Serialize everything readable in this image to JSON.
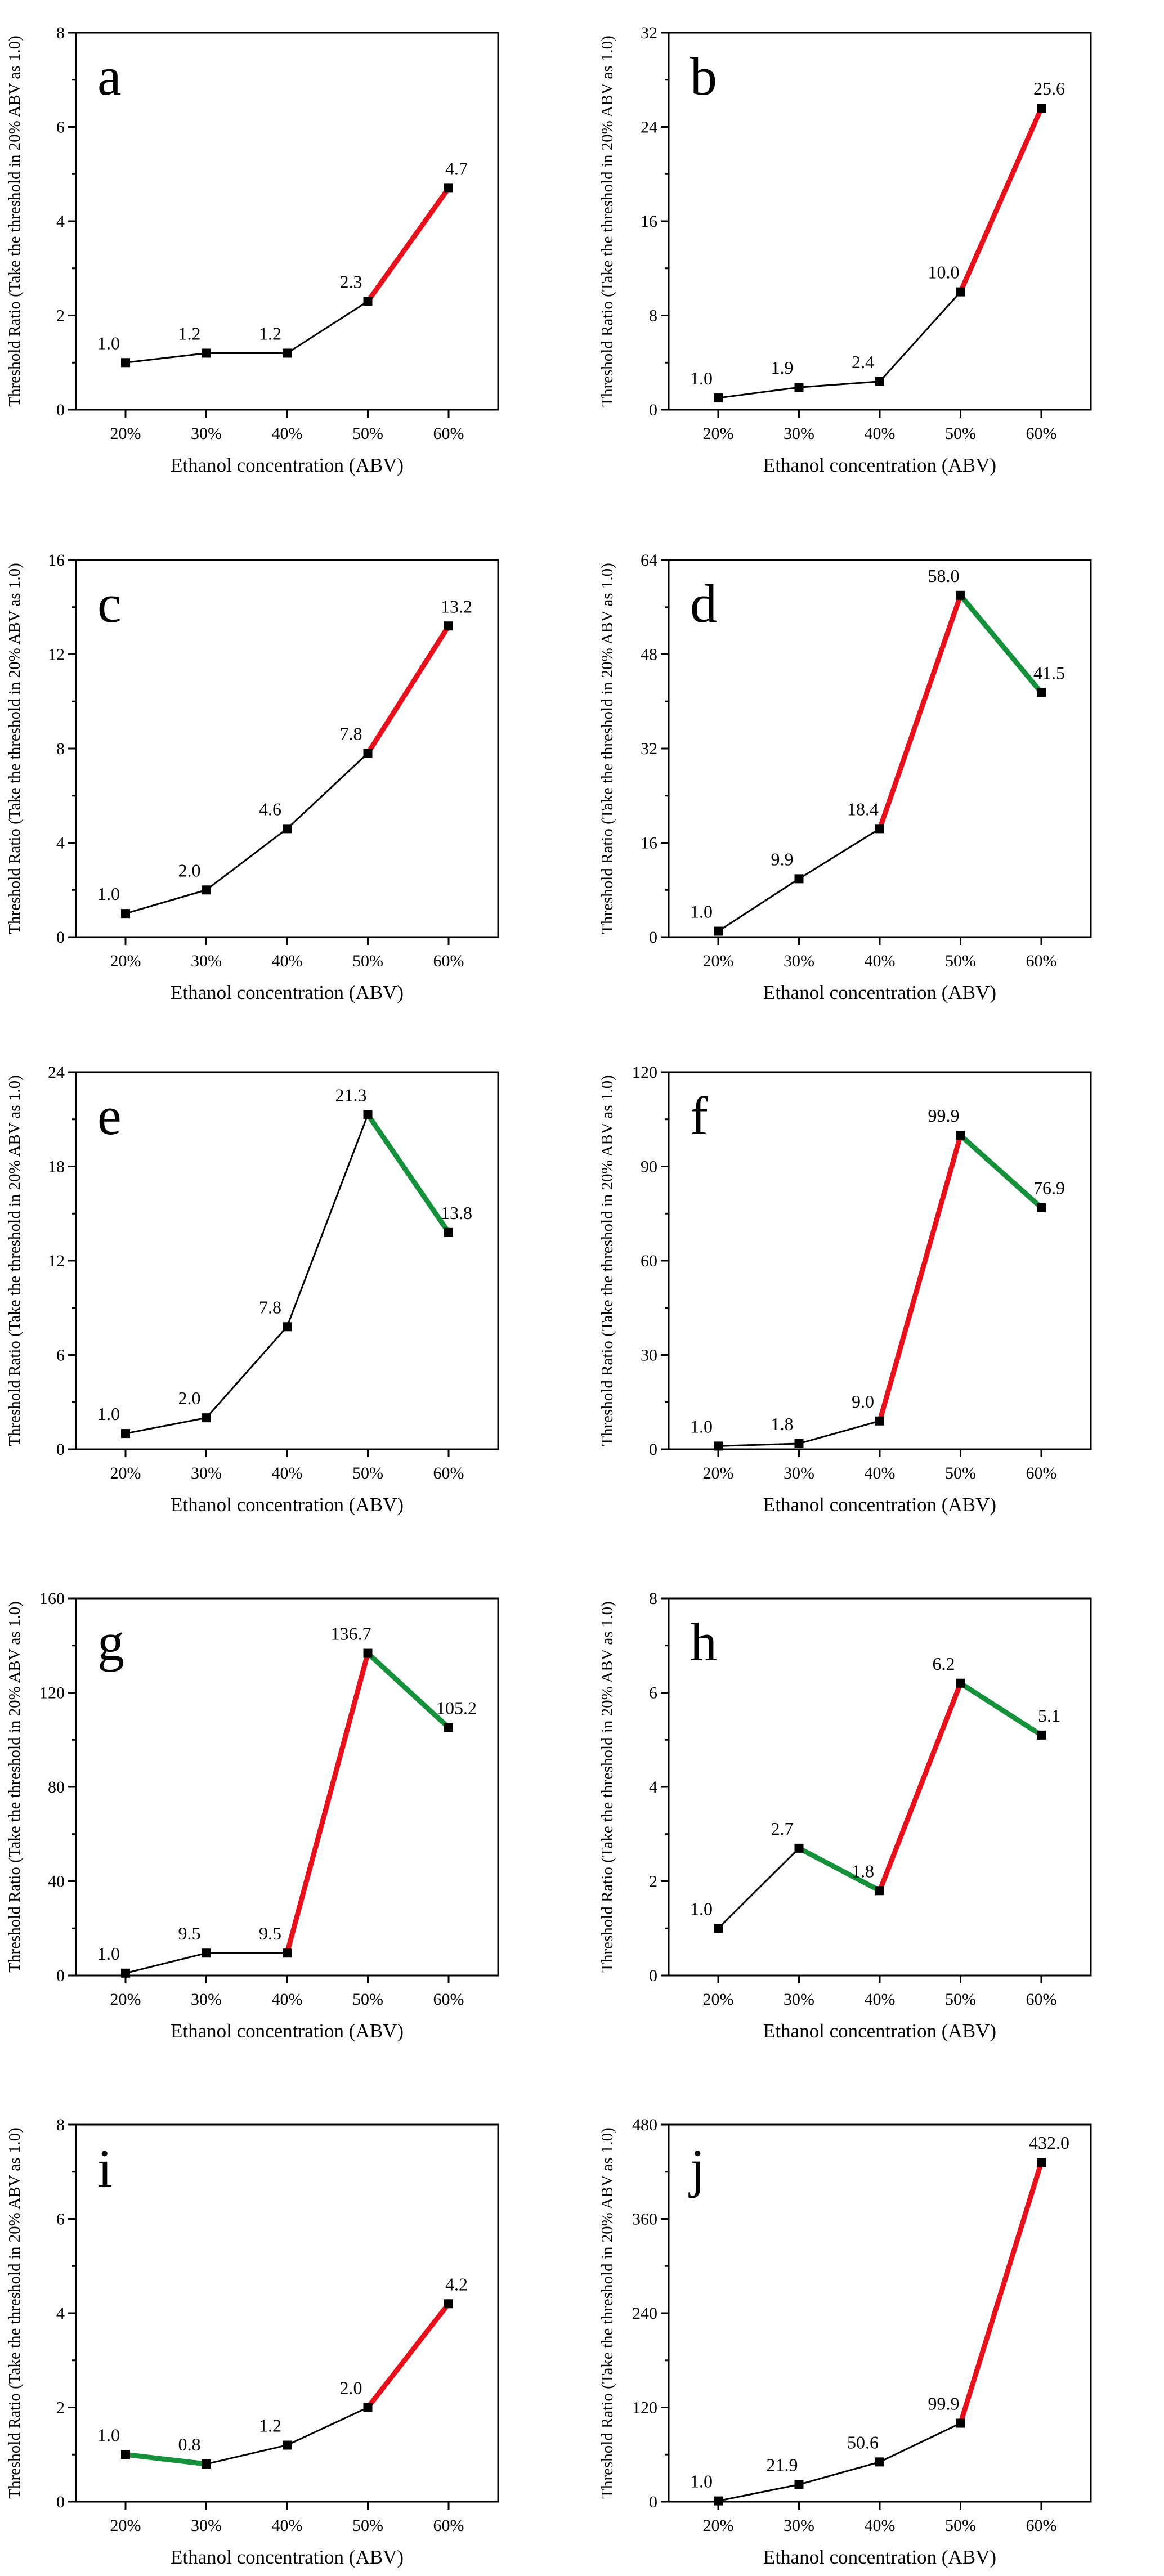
{
  "colors": {
    "rise": "#e8101a",
    "fall": "#14913a",
    "base": "#000000"
  },
  "chart_data": [
    {
      "type": "line",
      "label": "a",
      "x": [
        "20%",
        "30%",
        "40%",
        "50%",
        "60%"
      ],
      "values": [
        1.0,
        1.2,
        1.2,
        2.3,
        4.7
      ],
      "value_labels": [
        "1.0",
        "1.2",
        "1.2",
        "2.3",
        "4.7"
      ],
      "segment_colors": [
        "base",
        "base",
        "base",
        "rise"
      ],
      "ylim": [
        0,
        8
      ],
      "yticks": [
        "0",
        "2",
        "4",
        "6",
        "8"
      ],
      "xlabel": "Ethanol concentration (ABV)",
      "ylabel": "Threshold Ratio (Take the threshold in 20% ABV as 1.0)"
    },
    {
      "type": "line",
      "label": "b",
      "x": [
        "20%",
        "30%",
        "40%",
        "50%",
        "60%"
      ],
      "values": [
        1.0,
        1.9,
        2.4,
        10.0,
        25.6
      ],
      "value_labels": [
        "1.0",
        "1.9",
        "2.4",
        "10.0",
        "25.6"
      ],
      "segment_colors": [
        "base",
        "base",
        "base",
        "rise"
      ],
      "ylim": [
        0,
        32
      ],
      "yticks": [
        "0",
        "8",
        "16",
        "24",
        "32"
      ],
      "xlabel": "Ethanol concentration (ABV)",
      "ylabel": "Threshold Ratio (Take the threshold in 20% ABV as 1.0)"
    },
    {
      "type": "line",
      "label": "c",
      "x": [
        "20%",
        "30%",
        "40%",
        "50%",
        "60%"
      ],
      "values": [
        1.0,
        2.0,
        4.6,
        7.8,
        13.2
      ],
      "value_labels": [
        "1.0",
        "2.0",
        "4.6",
        "7.8",
        "13.2"
      ],
      "segment_colors": [
        "base",
        "base",
        "base",
        "rise"
      ],
      "ylim": [
        0,
        16
      ],
      "yticks": [
        "0",
        "4",
        "8",
        "12",
        "16"
      ],
      "xlabel": "Ethanol concentration (ABV)",
      "ylabel": "Threshold Ratio (Take the threshold in 20% ABV as 1.0)"
    },
    {
      "type": "line",
      "label": "d",
      "x": [
        "20%",
        "30%",
        "40%",
        "50%",
        "60%"
      ],
      "values": [
        1.0,
        9.9,
        18.4,
        58.0,
        41.5
      ],
      "value_labels": [
        "1.0",
        "9.9",
        "18.4",
        "58.0",
        "41.5"
      ],
      "segment_colors": [
        "base",
        "base",
        "rise",
        "fall"
      ],
      "ylim": [
        0,
        64
      ],
      "yticks": [
        "0",
        "16",
        "32",
        "48",
        "64"
      ],
      "xlabel": "Ethanol concentration (ABV)",
      "ylabel": "Threshold Ratio (Take the threshold in 20% ABV as 1.0)"
    },
    {
      "type": "line",
      "label": "e",
      "x": [
        "20%",
        "30%",
        "40%",
        "50%",
        "60%"
      ],
      "values": [
        1.0,
        2.0,
        7.8,
        21.3,
        13.8
      ],
      "value_labels": [
        "1.0",
        "2.0",
        "7.8",
        "21.3",
        "13.8"
      ],
      "segment_colors": [
        "base",
        "base",
        "base",
        "fall"
      ],
      "ylim": [
        0,
        24
      ],
      "yticks": [
        "0",
        "6",
        "12",
        "18",
        "24"
      ],
      "xlabel": "Ethanol concentration (ABV)",
      "ylabel": "Threshold Ratio (Take the threshold in 20% ABV as 1.0)"
    },
    {
      "type": "line",
      "label": "f",
      "x": [
        "20%",
        "30%",
        "40%",
        "50%",
        "60%"
      ],
      "values": [
        1.0,
        1.8,
        9.0,
        99.9,
        76.9
      ],
      "value_labels": [
        "1.0",
        "1.8",
        "9.0",
        "99.9",
        "76.9"
      ],
      "segment_colors": [
        "base",
        "base",
        "rise",
        "fall"
      ],
      "ylim": [
        0,
        120
      ],
      "yticks": [
        "0",
        "30",
        "60",
        "90",
        "120"
      ],
      "xlabel": "Ethanol concentration (ABV)",
      "ylabel": "Threshold Ratio (Take the threshold in 20% ABV as 1.0)"
    },
    {
      "type": "line",
      "label": "g",
      "x": [
        "20%",
        "30%",
        "40%",
        "50%",
        "60%"
      ],
      "values": [
        1.0,
        9.5,
        9.5,
        136.7,
        105.2
      ],
      "value_labels": [
        "1.0",
        "9.5",
        "9.5",
        "136.7",
        "105.2"
      ],
      "segment_colors": [
        "base",
        "base",
        "rise",
        "fall"
      ],
      "ylim": [
        0,
        160
      ],
      "yticks": [
        "0",
        "40",
        "80",
        "120",
        "160"
      ],
      "xlabel": "Ethanol concentration (ABV)",
      "ylabel": "Threshold Ratio (Take the threshold in 20% ABV as 1.0)"
    },
    {
      "type": "line",
      "label": "h",
      "x": [
        "20%",
        "30%",
        "40%",
        "50%",
        "60%"
      ],
      "values": [
        1.0,
        2.7,
        1.8,
        6.2,
        5.1
      ],
      "value_labels": [
        "1.0",
        "2.7",
        "1.8",
        "6.2",
        "5.1"
      ],
      "segment_colors": [
        "base",
        "fall",
        "rise",
        "fall"
      ],
      "ylim": [
        0,
        8
      ],
      "yticks": [
        "0",
        "2",
        "4",
        "6",
        "8"
      ],
      "xlabel": "Ethanol concentration (ABV)",
      "ylabel": "Threshold Ratio (Take the threshold in 20% ABV as 1.0)"
    },
    {
      "type": "line",
      "label": "i",
      "x": [
        "20%",
        "30%",
        "40%",
        "50%",
        "60%"
      ],
      "values": [
        1.0,
        0.8,
        1.2,
        2.0,
        4.2
      ],
      "value_labels": [
        "1.0",
        "0.8",
        "1.2",
        "2.0",
        "4.2"
      ],
      "segment_colors": [
        "fall",
        "base",
        "base",
        "rise"
      ],
      "ylim": [
        0,
        8
      ],
      "yticks": [
        "0",
        "2",
        "4",
        "6",
        "8"
      ],
      "xlabel": "Ethanol concentration (ABV)",
      "ylabel": "Threshold Ratio (Take the threshold in 20% ABV as 1.0)"
    },
    {
      "type": "line",
      "label": "j",
      "x": [
        "20%",
        "30%",
        "40%",
        "50%",
        "60%"
      ],
      "values": [
        1.0,
        21.9,
        50.6,
        99.9,
        432.0
      ],
      "value_labels": [
        "1.0",
        "21.9",
        "50.6",
        "99.9",
        "432.0"
      ],
      "segment_colors": [
        "base",
        "base",
        "base",
        "rise"
      ],
      "ylim": [
        0,
        480
      ],
      "yticks": [
        "0",
        "120",
        "240",
        "360",
        "480"
      ],
      "xlabel": "Ethanol concentration (ABV)",
      "ylabel": "Threshold Ratio (Take the threshold in 20% ABV as 1.0)"
    }
  ]
}
